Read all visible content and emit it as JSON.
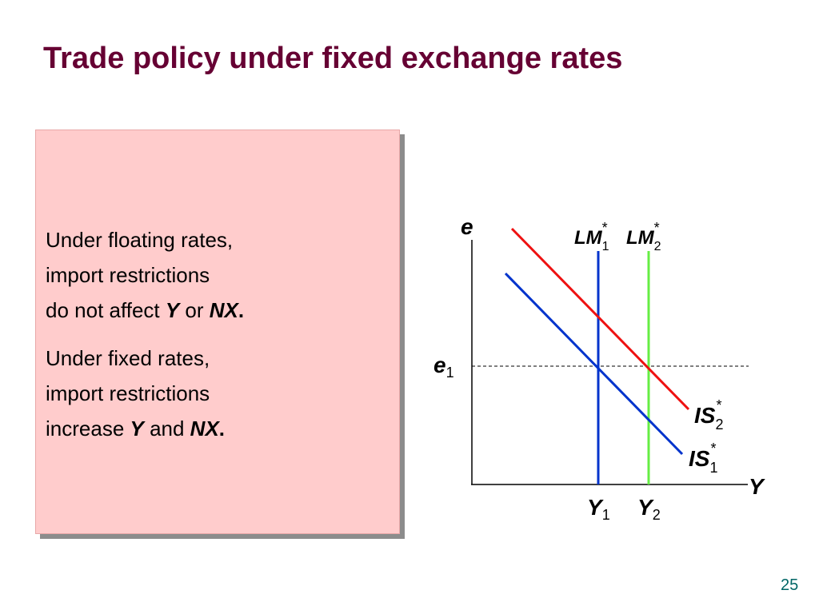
{
  "slide": {
    "title": "Trade policy under fixed exchange rates",
    "page_number": "25"
  },
  "textbox": {
    "para1": {
      "line1": "Under floating rates,",
      "line2": "import restrictions",
      "line3_prefix": "do not affect ",
      "line3_var1": "Y",
      "line3_mid": " or ",
      "line3_var2": "NX",
      "line3_end": "."
    },
    "para2": {
      "line1": "Under fixed rates,",
      "line2": "import restrictions",
      "line3_prefix": "increase ",
      "line3_var1": "Y",
      "line3_mid": " and ",
      "line3_var2": "NX",
      "line3_end": "."
    }
  },
  "diagram": {
    "y_axis_label": "e",
    "x_axis_label": "Y",
    "e1_label": {
      "main": "e",
      "sub": "1"
    },
    "Y1_label": {
      "main": "Y",
      "sub": "1"
    },
    "Y2_label": {
      "main": "Y",
      "sub": "2"
    },
    "LM1_label": {
      "main": "LM",
      "sub": "1",
      "sup": "*"
    },
    "LM2_label": {
      "main": "LM",
      "sub": "2",
      "sup": "*"
    },
    "IS1_label": {
      "main": "IS",
      "sub": "1",
      "sup": "*"
    },
    "IS2_label": {
      "main": "IS",
      "sub": "2",
      "sup": "*"
    },
    "colors": {
      "IS1": "#0033cc",
      "IS2": "#ee1111",
      "LM1": "#0033cc",
      "LM2": "#66ee44",
      "title": "#660033",
      "box_fill": "#ffcccc"
    }
  }
}
